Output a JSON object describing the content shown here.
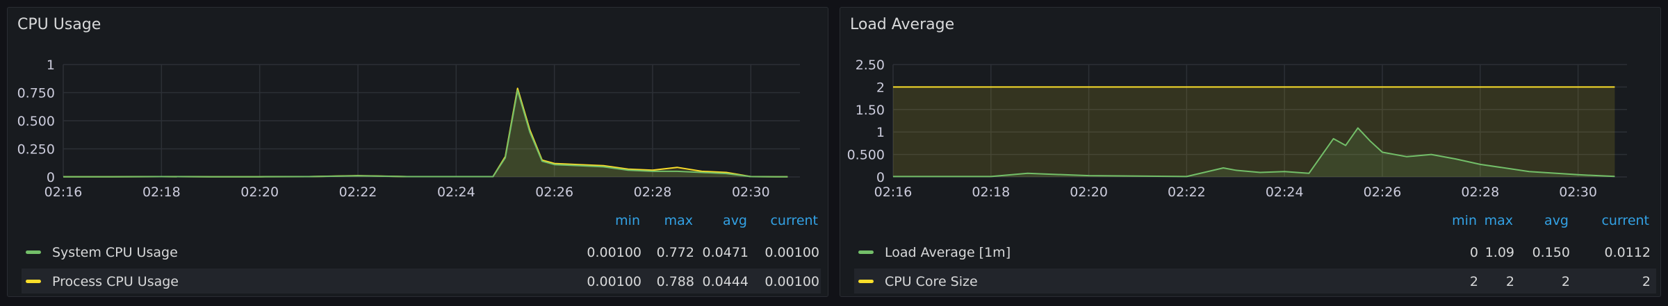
{
  "panels": [
    {
      "title": "CPU Usage",
      "legend": {
        "headers": [
          "min",
          "max",
          "avg",
          "current"
        ],
        "rows": [
          {
            "name": "System CPU Usage",
            "color": "#73bf69",
            "values": [
              "0.00100",
              "0.772",
              "0.0471",
              "0.00100"
            ]
          },
          {
            "name": "Process CPU Usage",
            "color": "#fade2a",
            "values": [
              "0.00100",
              "0.788",
              "0.0444",
              "0.00100"
            ]
          }
        ]
      }
    },
    {
      "title": "Load Average",
      "legend": {
        "headers": [
          "min",
          "max",
          "avg",
          "current"
        ],
        "rows": [
          {
            "name": "Load Average [1m]",
            "color": "#73bf69",
            "values": [
              "0",
              "1.09",
              "0.150",
              "0.0112"
            ]
          },
          {
            "name": "CPU Core Size",
            "color": "#fade2a",
            "values": [
              "2",
              "2",
              "2",
              "2"
            ]
          }
        ]
      }
    }
  ],
  "chart_data": [
    {
      "type": "line",
      "title": "CPU Usage",
      "x_ticks": [
        "02:16",
        "02:18",
        "02:20",
        "02:22",
        "02:24",
        "02:26",
        "02:28",
        "02:30"
      ],
      "y_ticks": [
        "0",
        "0.250",
        "0.500",
        "0.750",
        "1"
      ],
      "ylim": [
        0,
        1
      ],
      "x": [
        "02:16",
        "02:17",
        "02:18",
        "02:19",
        "02:20",
        "02:21",
        "02:22",
        "02:23",
        "02:24",
        "02:24:45",
        "02:25",
        "02:25:15",
        "02:25:30",
        "02:25:45",
        "02:26",
        "02:26:30",
        "02:27",
        "02:27:30",
        "02:28",
        "02:28:30",
        "02:29",
        "02:29:30",
        "02:30",
        "02:30:30",
        "02:30:45"
      ],
      "series": [
        {
          "name": "System CPU Usage",
          "color": "#73bf69",
          "values": [
            0.002,
            0.002,
            0.003,
            0.002,
            0.002,
            0.003,
            0.01,
            0.003,
            0.003,
            0.003,
            0.17,
            0.77,
            0.4,
            0.14,
            0.11,
            0.1,
            0.09,
            0.06,
            0.05,
            0.05,
            0.04,
            0.03,
            0.003,
            0.002,
            0.001
          ]
        },
        {
          "name": "Process CPU Usage",
          "color": "#fade2a",
          "values": [
            0.002,
            0.002,
            0.003,
            0.002,
            0.002,
            0.003,
            0.012,
            0.003,
            0.003,
            0.003,
            0.18,
            0.788,
            0.42,
            0.15,
            0.12,
            0.11,
            0.1,
            0.07,
            0.06,
            0.085,
            0.05,
            0.04,
            0.003,
            0.002,
            0.001
          ]
        }
      ],
      "grid": true
    },
    {
      "type": "area",
      "title": "Load Average",
      "x_ticks": [
        "02:16",
        "02:18",
        "02:20",
        "02:22",
        "02:24",
        "02:26",
        "02:28",
        "02:30"
      ],
      "y_ticks": [
        "0",
        "0.500",
        "1",
        "1.50",
        "2",
        "2.50"
      ],
      "ylim": [
        0,
        2.5
      ],
      "x": [
        "02:16",
        "02:17",
        "02:18",
        "02:18:45",
        "02:19",
        "02:20",
        "02:21",
        "02:22",
        "02:22:45",
        "02:23",
        "02:23:30",
        "02:24",
        "02:24:30",
        "02:25",
        "02:25:15",
        "02:25:30",
        "02:25:45",
        "02:26",
        "02:26:30",
        "02:27",
        "02:27:30",
        "02:28",
        "02:29",
        "02:30",
        "02:30:45"
      ],
      "series": [
        {
          "name": "Load Average [1m]",
          "color": "#73bf69",
          "values": [
            0.01,
            0.01,
            0.01,
            0.08,
            0.07,
            0.03,
            0.02,
            0.01,
            0.2,
            0.15,
            0.1,
            0.12,
            0.08,
            0.85,
            0.7,
            1.09,
            0.8,
            0.55,
            0.45,
            0.5,
            0.4,
            0.28,
            0.12,
            0.05,
            0.0112
          ]
        },
        {
          "name": "CPU Core Size",
          "color": "#fade2a",
          "values": [
            2,
            2,
            2,
            2,
            2,
            2,
            2,
            2,
            2,
            2,
            2,
            2,
            2,
            2,
            2,
            2,
            2,
            2,
            2,
            2,
            2,
            2,
            2,
            2,
            2
          ]
        }
      ],
      "grid": true
    }
  ]
}
